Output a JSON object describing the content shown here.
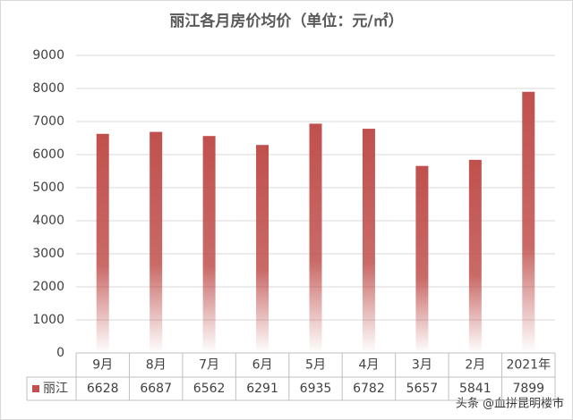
{
  "chart_data": {
    "type": "bar",
    "title": "丽江各月房价均价（单位：元/㎡）",
    "categories": [
      "9月",
      "8月",
      "7月",
      "6月",
      "5月",
      "4月",
      "3月",
      "2月",
      "2021年"
    ],
    "series": [
      {
        "name": "丽江",
        "color": "#c0504d",
        "values": [
          6628,
          6687,
          6562,
          6291,
          6935,
          6782,
          5657,
          5841,
          7899
        ]
      }
    ],
    "ylim": [
      0,
      9000
    ],
    "yticks": [
      0,
      1000,
      2000,
      3000,
      4000,
      5000,
      6000,
      7000,
      8000,
      9000
    ],
    "grid": true,
    "watermark": "头条 @血拼昆明楼市"
  }
}
